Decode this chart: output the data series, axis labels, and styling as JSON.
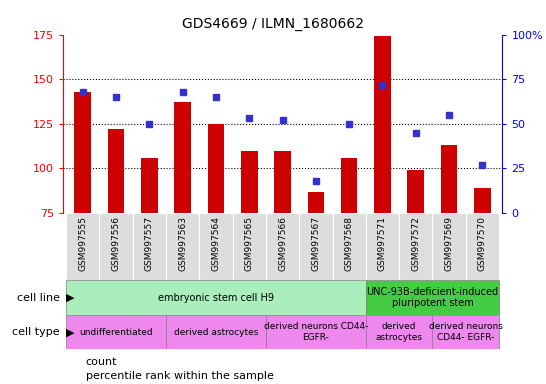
{
  "title": "GDS4669 / ILMN_1680662",
  "samples": [
    "GSM997555",
    "GSM997556",
    "GSM997557",
    "GSM997563",
    "GSM997564",
    "GSM997565",
    "GSM997566",
    "GSM997567",
    "GSM997568",
    "GSM997571",
    "GSM997572",
    "GSM997569",
    "GSM997570"
  ],
  "counts": [
    143,
    122,
    106,
    137,
    125,
    110,
    110,
    87,
    106,
    174,
    99,
    113,
    89
  ],
  "percentiles": [
    68,
    65,
    50,
    68,
    65,
    53,
    52,
    18,
    50,
    72,
    45,
    55,
    27
  ],
  "ylim_left": [
    75,
    175
  ],
  "ylim_right": [
    0,
    100
  ],
  "yticks_left": [
    75,
    100,
    125,
    150,
    175
  ],
  "yticks_right": [
    0,
    25,
    50,
    75,
    100
  ],
  "bar_color": "#cc0000",
  "dot_color": "#3333cc",
  "cell_line_groups": [
    {
      "label": "embryonic stem cell H9",
      "start": 0,
      "end": 9,
      "color": "#aaeebb"
    },
    {
      "label": "UNC-93B-deficient-induced\npluripotent stem",
      "start": 9,
      "end": 13,
      "color": "#44cc44"
    }
  ],
  "cell_type_groups": [
    {
      "label": "undifferentiated",
      "start": 0,
      "end": 3,
      "color": "#ee88ee"
    },
    {
      "label": "derived astrocytes",
      "start": 3,
      "end": 6,
      "color": "#ee88ee"
    },
    {
      "label": "derived neurons CD44-\nEGFR-",
      "start": 6,
      "end": 9,
      "color": "#ee88ee"
    },
    {
      "label": "derived\nastrocytes",
      "start": 9,
      "end": 11,
      "color": "#ee88ee"
    },
    {
      "label": "derived neurons\nCD44- EGFR-",
      "start": 11,
      "end": 13,
      "color": "#ee88ee"
    }
  ],
  "grid_yticks": [
    100,
    125,
    150
  ],
  "bar_bottom": 75,
  "fig_width": 5.46,
  "fig_height": 3.84,
  "dpi": 100
}
